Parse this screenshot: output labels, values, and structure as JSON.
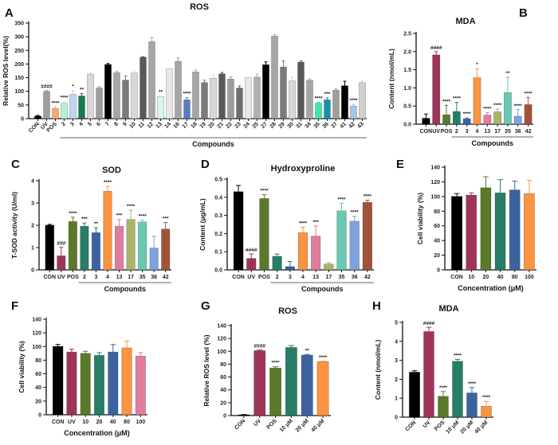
{
  "panels": {
    "A": {
      "letter": "A"
    },
    "B": {
      "letter": "B"
    },
    "C": {
      "letter": "C"
    },
    "D": {
      "letter": "D"
    },
    "E": {
      "letter": "E"
    },
    "F": {
      "letter": "F"
    },
    "G": {
      "letter": "G"
    },
    "H": {
      "letter": "H"
    }
  },
  "chart_data": [
    {
      "id": "A",
      "type": "bar",
      "title": "ROS",
      "xlabel": "",
      "ylabel": "Relative ROS level(%)",
      "ylim": [
        0,
        350
      ],
      "yticks": [
        0,
        50,
        100,
        150,
        200,
        250,
        300,
        350
      ],
      "group_label": "Compounds",
      "group_start": 3,
      "rotate_labels": true,
      "categories": [
        "CON",
        "UV",
        "POS",
        "2",
        "3",
        "4",
        "5",
        "6",
        "7",
        "8",
        "9",
        "10",
        "11",
        "12",
        "13",
        "14",
        "16",
        "17",
        "18",
        "19",
        "20",
        "21",
        "22",
        "23",
        "24",
        "25",
        "27",
        "28",
        "29",
        "30",
        "31",
        "34",
        "35",
        "36",
        "37",
        "41",
        "42",
        "43"
      ],
      "values": [
        9,
        100,
        37,
        56,
        89,
        83,
        163,
        112,
        198,
        168,
        141,
        167,
        225,
        282,
        81,
        182,
        210,
        69,
        171,
        132,
        148,
        164,
        145,
        112,
        150,
        152,
        197,
        302,
        189,
        138,
        207,
        140,
        57,
        69,
        104,
        120,
        46,
        132
      ],
      "errors": [
        3,
        3,
        6,
        6,
        14,
        9,
        5,
        5,
        4,
        5,
        16,
        8,
        2,
        15,
        2,
        6,
        13,
        8,
        7,
        9,
        13,
        5,
        8,
        8,
        2,
        11,
        11,
        5,
        23,
        14,
        5,
        5,
        3,
        7,
        5,
        17,
        6,
        6
      ],
      "significance": [
        "",
        "####",
        "****",
        "****",
        "*",
        "**",
        "",
        "",
        "",
        "",
        "",
        "",
        "",
        "",
        "**",
        "",
        "",
        "****",
        "",
        "",
        "",
        "",
        "",
        "",
        "",
        "",
        "",
        "",
        "",
        "",
        "",
        "",
        "****",
        "***",
        "",
        "",
        "****",
        ""
      ],
      "colors": [
        "#000000",
        "#9e9e9e",
        "#f6a96a",
        "#b7f0da",
        "#bcd6f3",
        "#137a4f",
        "#d8d8d8",
        "#9e9e9e",
        "#000000",
        "#a6a6a6",
        "#7b7b7b",
        "#d8d8d8",
        "#595959",
        "#a6a6a6",
        "#d9f5ec",
        "#e8e8e8",
        "#a6a6a6",
        "#5a7dbf",
        "#a6a6a6",
        "#7b7b7b",
        "#d8d8d8",
        "#595959",
        "#9e9e9e",
        "#6e6e6e",
        "#e8e8e8",
        "#b0b0b0",
        "#000000",
        "#a6a6a6",
        "#7b7b7b",
        "#d8d8d8",
        "#595959",
        "#a6a6a6",
        "#3de8b0",
        "#1891ad",
        "#9e9e9e",
        "#000000",
        "#9fc6ec",
        "#cfcfcf"
      ]
    },
    {
      "id": "B",
      "type": "bar",
      "title": "MDA",
      "xlabel": "",
      "ylabel": "Content (nmol/mL)",
      "ylim": [
        0,
        2.5
      ],
      "yticks": [
        0.0,
        0.5,
        1.0,
        1.5,
        2.0,
        2.5
      ],
      "group_label": "Compounds",
      "group_start": 3,
      "rotate_labels": false,
      "categories": [
        "CON",
        "UV",
        "POS",
        "2",
        "3",
        "4",
        "13",
        "17",
        "35",
        "36",
        "42"
      ],
      "values": [
        0.16,
        1.91,
        0.26,
        0.35,
        0.15,
        1.28,
        0.25,
        0.34,
        0.87,
        0.22,
        0.54
      ],
      "errors": [
        0.12,
        0.09,
        0.26,
        0.25,
        0.02,
        0.25,
        0.07,
        0.08,
        0.42,
        0.18,
        0.2
      ],
      "significance": [
        "",
        "####",
        "****",
        "****",
        "****",
        "*",
        "****",
        "****",
        "**",
        "****",
        "****"
      ],
      "colors": [
        "#000000",
        "#9e3559",
        "#5a7a2a",
        "#267e66",
        "#3c63a0",
        "#fb9340",
        "#de7e9c",
        "#aab56a",
        "#69c8b3",
        "#7fa2dc",
        "#a1533a"
      ]
    },
    {
      "id": "C",
      "type": "bar",
      "title": "SOD",
      "xlabel": "",
      "ylabel": "T-SOD activity (U/ml)",
      "ylim": [
        0,
        4
      ],
      "yticks": [
        0,
        1,
        2,
        3,
        4
      ],
      "group_label": "Compounds",
      "group_start": 3,
      "rotate_labels": false,
      "categories": [
        "CON",
        "UV",
        "POS",
        "2",
        "3",
        "4",
        "13",
        "17",
        "35",
        "36",
        "42"
      ],
      "values": [
        2.0,
        0.63,
        2.17,
        1.96,
        1.67,
        3.53,
        1.96,
        2.26,
        2.15,
        0.98,
        1.83
      ],
      "errors": [
        0.04,
        0.38,
        0.19,
        0.14,
        0.22,
        0.22,
        0.3,
        0.42,
        0.09,
        0.53,
        0.29
      ],
      "significance": [
        "",
        "###",
        "****",
        "***",
        "**",
        "****",
        "***",
        "****",
        "****",
        "",
        "***"
      ],
      "colors": [
        "#000000",
        "#9e3559",
        "#5a7a2a",
        "#267e66",
        "#3c63a0",
        "#fb9340",
        "#de7e9c",
        "#aab56a",
        "#69c8b3",
        "#7fa2dc",
        "#a1533a"
      ]
    },
    {
      "id": "D",
      "type": "bar",
      "title": "Hydroxyproline",
      "xlabel": "",
      "ylabel": "Content (μg/mL)",
      "ylim": [
        0,
        0.5
      ],
      "yticks": [
        0.0,
        0.1,
        0.2,
        0.3,
        0.4,
        0.5
      ],
      "group_label": "Compounds",
      "group_start": 3,
      "rotate_labels": false,
      "categories": [
        "CON",
        "UV",
        "POS",
        "2",
        "3",
        "4",
        "13",
        "17",
        "35",
        "36",
        "42"
      ],
      "values": [
        0.43,
        0.063,
        0.393,
        0.075,
        0.018,
        0.205,
        0.186,
        0.032,
        0.325,
        0.268,
        0.372
      ],
      "errors": [
        0.035,
        0.025,
        0.022,
        0.012,
        0.028,
        0.03,
        0.055,
        0.007,
        0.042,
        0.027,
        0.012
      ],
      "significance": [
        "",
        "####",
        "****",
        "",
        "",
        "****",
        "***",
        "",
        "****",
        "****",
        "****"
      ],
      "colors": [
        "#000000",
        "#9e3559",
        "#5a7a2a",
        "#267e66",
        "#3c63a0",
        "#fb9340",
        "#de7e9c",
        "#aab56a",
        "#69c8b3",
        "#7fa2dc",
        "#a1533a"
      ]
    },
    {
      "id": "E",
      "type": "bar",
      "title": "",
      "xlabel": "Concentration (μM)",
      "ylabel": "Cell viability (%)",
      "ylim": [
        0,
        140
      ],
      "yticks": [
        0,
        20,
        40,
        60,
        80,
        100,
        120,
        140
      ],
      "group_label": "",
      "group_start": -1,
      "rotate_labels": false,
      "categories": [
        "CON",
        "10",
        "20",
        "40",
        "80",
        "100"
      ],
      "values": [
        100,
        102,
        112,
        105,
        109,
        104
      ],
      "errors": [
        4,
        3,
        15,
        18,
        12,
        18
      ],
      "significance": [
        "",
        "",
        "",
        "",
        "",
        ""
      ],
      "colors": [
        "#000000",
        "#9e3559",
        "#5a7a2a",
        "#267e66",
        "#3c63a0",
        "#fb9340"
      ]
    },
    {
      "id": "F",
      "type": "bar",
      "title": "",
      "xlabel": "Concentration (μM)",
      "ylabel": "Cell viability (%)",
      "ylim": [
        0,
        140
      ],
      "yticks": [
        0,
        20,
        40,
        60,
        80,
        100,
        120,
        140
      ],
      "group_label": "",
      "group_start": -1,
      "rotate_labels": false,
      "categories": [
        "CON",
        "UV",
        "10",
        "20",
        "40",
        "80",
        "100"
      ],
      "values": [
        100,
        92,
        90,
        87,
        92,
        98,
        86
      ],
      "errors": [
        3,
        4,
        3,
        4,
        11,
        10,
        5
      ],
      "significance": [
        "",
        "",
        "",
        "",
        "",
        "",
        ""
      ],
      "colors": [
        "#000000",
        "#9e3559",
        "#5a7a2a",
        "#267e66",
        "#3c63a0",
        "#fb9340",
        "#de7e9c"
      ]
    },
    {
      "id": "G",
      "type": "bar",
      "title": "ROS",
      "xlabel": "",
      "ylabel": "Relative ROS level (%)",
      "ylim": [
        0,
        140
      ],
      "yticks": [
        0,
        20,
        40,
        60,
        80,
        100,
        120,
        140
      ],
      "group_label": "",
      "group_start": -1,
      "rotate_labels": true,
      "categories": [
        "CON",
        "UV",
        "POS",
        "10 μM",
        "20 μM",
        "40 μM"
      ],
      "values": [
        1,
        101,
        74,
        106,
        94,
        84
      ],
      "errors": [
        0.5,
        1,
        2,
        3,
        1,
        0.5
      ],
      "significance": [
        "",
        "####",
        "****",
        "",
        "**",
        "****"
      ],
      "colors": [
        "#000000",
        "#9e3559",
        "#5a7a2a",
        "#267e66",
        "#3c63a0",
        "#fb9340"
      ]
    },
    {
      "id": "H",
      "type": "bar",
      "title": "MDA",
      "xlabel": "",
      "ylabel": "Content (nmol/mL)",
      "ylim": [
        0,
        5
      ],
      "yticks": [
        0,
        1,
        2,
        3,
        4,
        5
      ],
      "group_label": "",
      "group_start": -1,
      "rotate_labels": true,
      "categories": [
        "CON",
        "UV",
        "POS",
        "10 μM",
        "20 μM",
        "40 μM"
      ],
      "values": [
        2.37,
        4.52,
        1.1,
        2.95,
        1.28,
        0.58
      ],
      "errors": [
        0.08,
        0.22,
        0.25,
        0.1,
        0.28,
        0.25
      ],
      "significance": [
        "",
        "####",
        "****",
        "****",
        "****",
        "****"
      ],
      "colors": [
        "#000000",
        "#9e3559",
        "#5a7a2a",
        "#267e66",
        "#3c63a0",
        "#fb9340"
      ]
    }
  ]
}
